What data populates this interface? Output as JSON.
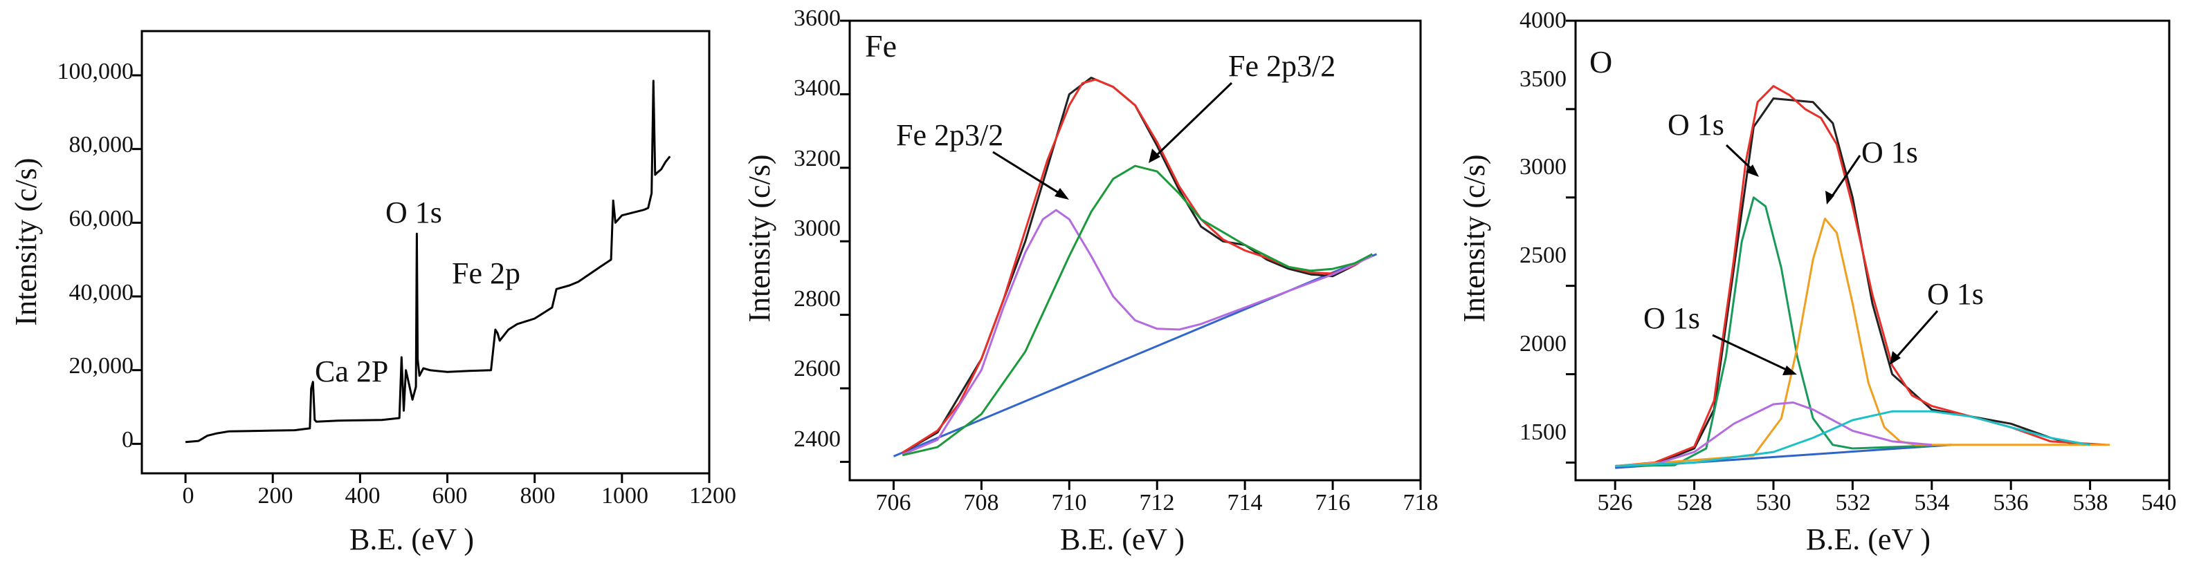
{
  "chart_data": [
    {
      "type": "line",
      "title": "",
      "xlabel": "B.E. (eV )",
      "ylabel": "Intensity (c/s)",
      "xlim": [
        -100,
        1200
      ],
      "ylim": [
        -8000,
        112000
      ],
      "xticks": [
        0,
        200,
        400,
        600,
        800,
        1000,
        1200
      ],
      "yticks": [
        0,
        20000,
        40000,
        60000,
        80000,
        100000
      ],
      "ytick_labels": [
        "0",
        "20,000",
        "40,000",
        "60,000",
        "80,000",
        "100,000"
      ],
      "series": [
        {
          "color": "#000000",
          "x": [
            0,
            30,
            50,
            70,
            100,
            150,
            200,
            250,
            285,
            288,
            292,
            296,
            300,
            350,
            400,
            450,
            490,
            495,
            500,
            505,
            520,
            528,
            530,
            532,
            536,
            545,
            560,
            600,
            650,
            700,
            710,
            715,
            720,
            740,
            760,
            800,
            840,
            850,
            880,
            900,
            950,
            975,
            980,
            985,
            1000,
            1050,
            1060,
            1068,
            1072,
            1076,
            1080,
            1090,
            1100,
            1110
          ],
          "values": [
            500,
            800,
            2200,
            2800,
            3400,
            3500,
            3600,
            3700,
            4200,
            15000,
            16800,
            6500,
            6000,
            6300,
            6400,
            6500,
            7000,
            23500,
            9000,
            20000,
            12000,
            15500,
            57000,
            23000,
            18500,
            20500,
            20000,
            19500,
            19800,
            20000,
            31000,
            30000,
            28000,
            31000,
            32500,
            34000,
            37000,
            42000,
            43000,
            44000,
            48000,
            50000,
            66000,
            60000,
            62000,
            63500,
            64000,
            68000,
            98500,
            73000,
            73500,
            74500,
            76500,
            78000
          ]
        }
      ],
      "annotations": [
        "Ca 2P",
        "O 1s",
        "Fe 2p"
      ]
    },
    {
      "type": "line",
      "title": "Fe",
      "xlabel": "B.E. (eV )",
      "ylabel": "Intensity (c/s)",
      "xlim": [
        705,
        718
      ],
      "ylim": [
        2350,
        3600
      ],
      "xticks": [
        706,
        708,
        710,
        712,
        714,
        716,
        718
      ],
      "yticks": [
        2400,
        2600,
        2800,
        3000,
        3200,
        3400,
        3600
      ],
      "series": [
        {
          "color": "#3366cc",
          "x": [
            706,
            717
          ],
          "values": [
            2415,
            2965
          ]
        },
        {
          "color": "#222222",
          "x": [
            706.2,
            707,
            708,
            709,
            709.5,
            710,
            710.5,
            711,
            711.5,
            712,
            712.5,
            713,
            713.5,
            714,
            714.5,
            715,
            715.5,
            716,
            716.5,
            716.9
          ],
          "values": [
            2425,
            2480,
            2680,
            3000,
            3200,
            3400,
            3445,
            3420,
            3370,
            3260,
            3140,
            3040,
            3000,
            2990,
            2950,
            2925,
            2910,
            2905,
            2935,
            2965
          ]
        },
        {
          "color": "#e8302a",
          "x": [
            706.2,
            707,
            707.5,
            708,
            708.5,
            709,
            709.5,
            710,
            710.3,
            710.6,
            711,
            711.5,
            712,
            712.5,
            713,
            713.5,
            714,
            714.5,
            715,
            715.5,
            716,
            716.5,
            716.9
          ],
          "values": [
            2425,
            2485,
            2560,
            2680,
            2840,
            3030,
            3220,
            3370,
            3430,
            3440,
            3420,
            3370,
            3270,
            3150,
            3060,
            3005,
            2975,
            2955,
            2930,
            2915,
            2912,
            2935,
            2965
          ]
        },
        {
          "color": "#b56be0",
          "x": [
            706.2,
            707,
            708,
            708.5,
            709,
            709.4,
            709.7,
            710,
            710.5,
            711,
            711.5,
            712,
            712.5,
            713,
            714,
            715,
            716,
            716.9
          ],
          "values": [
            2420,
            2460,
            2650,
            2820,
            2970,
            3060,
            3085,
            3060,
            2960,
            2850,
            2785,
            2762,
            2760,
            2775,
            2820,
            2865,
            2910,
            2960
          ]
        },
        {
          "color": "#1a9a3a",
          "x": [
            706.2,
            707,
            708,
            709,
            710,
            710.5,
            711,
            711.5,
            712,
            712.5,
            713,
            714,
            714.5,
            715,
            715.5,
            716,
            716.5,
            716.9
          ],
          "values": [
            2418,
            2440,
            2530,
            2700,
            2960,
            3080,
            3170,
            3205,
            3190,
            3130,
            3060,
            2990,
            2960,
            2930,
            2920,
            2925,
            2940,
            2965
          ]
        }
      ],
      "annotations": [
        "Fe 2p3/2",
        "Fe 2p3/2"
      ]
    },
    {
      "type": "line",
      "title": "O",
      "xlabel": "B.E. (eV )",
      "ylabel": "Intensity (c/s)",
      "xlim": [
        525,
        540
      ],
      "ylim": [
        1400,
        4000
      ],
      "xticks": [
        526,
        528,
        530,
        532,
        534,
        536,
        538,
        540
      ],
      "yticks": [
        1500,
        2000,
        2500,
        3000,
        3500,
        4000
      ],
      "series": [
        {
          "color": "#2f63c8",
          "x": [
            526,
            534.5
          ],
          "values": [
            1470,
            1600
          ]
        },
        {
          "color": "#222222",
          "x": [
            526,
            527,
            528,
            528.5,
            529,
            529.5,
            530,
            530.5,
            531,
            531.5,
            532,
            532.5,
            533,
            534,
            535,
            536,
            537,
            537.5,
            538
          ],
          "values": [
            1480,
            1490,
            1580,
            1800,
            2600,
            3400,
            3560,
            3550,
            3540,
            3420,
            3000,
            2400,
            2000,
            1800,
            1760,
            1720,
            1640,
            1610,
            1600
          ]
        },
        {
          "color": "#e8302a",
          "x": [
            526,
            527,
            528,
            528.5,
            529,
            529.3,
            529.6,
            530,
            530.4,
            530.8,
            531.2,
            531.6,
            532,
            532.5,
            533,
            533.5,
            534,
            535,
            536,
            537,
            538.4
          ],
          "values": [
            1480,
            1500,
            1590,
            1850,
            2650,
            3200,
            3540,
            3630,
            3580,
            3500,
            3450,
            3300,
            2950,
            2450,
            2050,
            1880,
            1820,
            1760,
            1700,
            1620,
            1600
          ]
        },
        {
          "color": "#1a9a5a",
          "x": [
            526,
            527.5,
            528.3,
            528.8,
            529.2,
            529.5,
            529.8,
            530.2,
            530.6,
            531,
            531.5,
            532,
            534.5
          ],
          "values": [
            1480,
            1485,
            1580,
            2100,
            2750,
            3000,
            2950,
            2600,
            2100,
            1750,
            1600,
            1580,
            1600
          ]
        },
        {
          "color": "#f0a020",
          "x": [
            526,
            529.5,
            530.2,
            530.6,
            531,
            531.3,
            531.6,
            532,
            532.4,
            532.8,
            533.2,
            533.6,
            538.5
          ],
          "values": [
            1480,
            1540,
            1750,
            2150,
            2650,
            2880,
            2800,
            2400,
            1950,
            1700,
            1620,
            1600,
            1600
          ]
        },
        {
          "color": "#b56be0",
          "x": [
            526,
            527,
            528,
            529,
            530,
            530.5,
            531,
            532,
            533,
            534
          ],
          "values": [
            1480,
            1490,
            1560,
            1720,
            1830,
            1840,
            1800,
            1680,
            1620,
            1600
          ]
        },
        {
          "color": "#1ec0c8",
          "x": [
            526,
            528,
            530,
            531,
            532,
            533,
            534,
            535,
            536,
            537,
            538
          ],
          "values": [
            1480,
            1500,
            1560,
            1640,
            1740,
            1790,
            1790,
            1760,
            1700,
            1640,
            1600
          ]
        }
      ],
      "annotations": [
        "O 1s",
        "O 1s",
        "O 1s",
        "O 1s"
      ]
    }
  ],
  "panel1": {
    "xlabel": "B.E. (eV )",
    "ylabel": "Intensity (c/s)",
    "xticks": [
      "0",
      "200",
      "400",
      "600",
      "800",
      "1000",
      "1200"
    ],
    "yticks": [
      "0",
      "20,000",
      "40,000",
      "60,000",
      "80,000",
      "100,000"
    ],
    "ann": [
      "Ca 2P",
      "O 1s",
      "Fe 2p"
    ]
  },
  "panel2": {
    "title": "Fe",
    "xlabel": "B.E. (eV )",
    "ylabel": "Intensity (c/s)",
    "xticks": [
      "706",
      "708",
      "710",
      "712",
      "714",
      "716",
      "718"
    ],
    "yticks": [
      "2400",
      "2600",
      "2800",
      "3000",
      "3200",
      "3400",
      "3600"
    ],
    "ann": [
      "Fe 2p3/2",
      "Fe 2p3/2"
    ]
  },
  "panel3": {
    "title": "O",
    "xlabel": "B.E. (eV )",
    "ylabel": "Intensity (c/s)",
    "xticks": [
      "526",
      "528",
      "530",
      "532",
      "534",
      "536",
      "538",
      "540"
    ],
    "yticks": [
      "1500",
      "2000",
      "2500",
      "3000",
      "3500",
      "4000"
    ],
    "ann": [
      "O 1s",
      "O 1s",
      "O 1s",
      "O 1s"
    ]
  }
}
